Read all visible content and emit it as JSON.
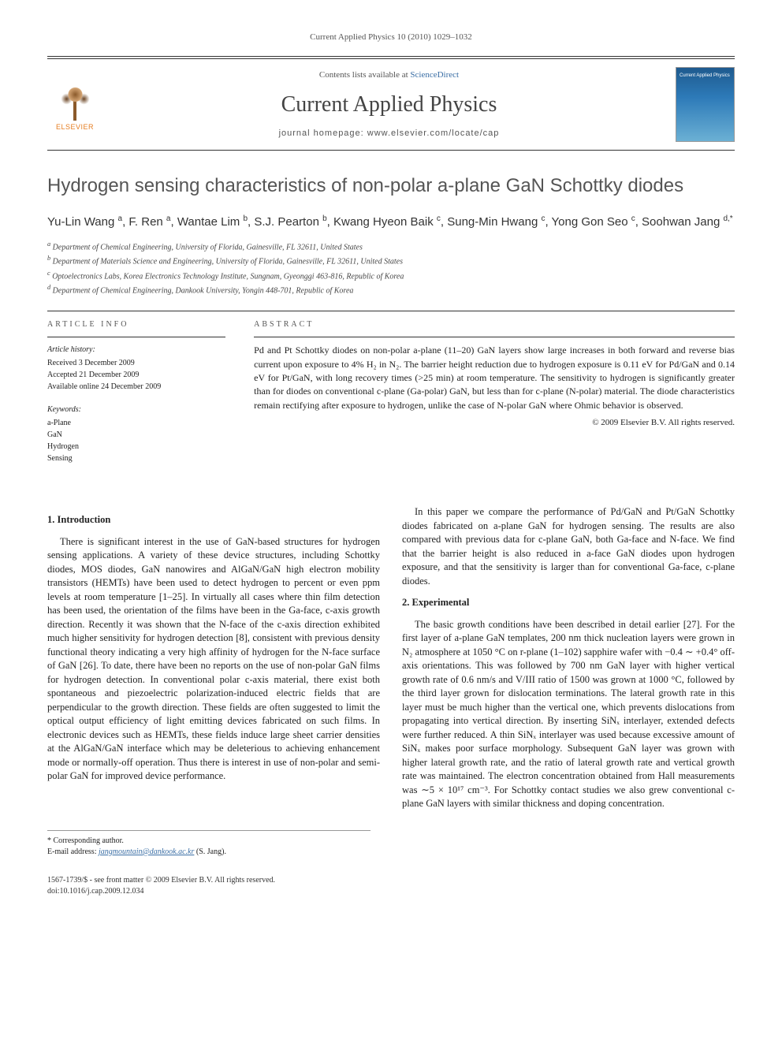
{
  "page_header": "Current Applied Physics 10 (2010) 1029–1032",
  "masthead": {
    "contents_prefix": "Contents lists available at ",
    "contents_link": "ScienceDirect",
    "journal_name": "Current Applied Physics",
    "homepage_prefix": "journal homepage: ",
    "homepage_url": "www.elsevier.com/locate/cap",
    "publisher_logo_text": "ELSEVIER",
    "cover_text_1": "Current Applied Physics"
  },
  "title": "Hydrogen sensing characteristics of non-polar a-plane GaN Schottky diodes",
  "authors_html": "Yu-Lin Wang <sup>a</sup>, F. Ren <sup>a</sup>, Wantae Lim <sup>b</sup>, S.J. Pearton <sup>b</sup>, Kwang Hyeon Baik <sup>c</sup>, Sung-Min Hwang <sup>c</sup>, Yong Gon Seo <sup>c</sup>, Soohwan Jang <sup>d,*</sup>",
  "affiliations": [
    "a Department of Chemical Engineering, University of Florida, Gainesville, FL 32611, United States",
    "b Department of Materials Science and Engineering, University of Florida, Gainesville, FL 32611, United States",
    "c Optoelectronics Labs, Korea Electronics Technology Institute, Sungnam, Gyeonggi 463-816, Republic of Korea",
    "d Department of Chemical Engineering, Dankook University, Yongin 448-701, Republic of Korea"
  ],
  "info": {
    "heading": "ARTICLE INFO",
    "history_label": "Article history:",
    "received": "Received 3 December 2009",
    "accepted": "Accepted 21 December 2009",
    "online": "Available online 24 December 2009",
    "keywords_label": "Keywords:",
    "keywords": [
      "a-Plane",
      "GaN",
      "Hydrogen",
      "Sensing"
    ]
  },
  "abstract": {
    "heading": "ABSTRACT",
    "text": "Pd and Pt Schottky diodes on non-polar a-plane (11–20) GaN layers show large increases in both forward and reverse bias current upon exposure to 4% H₂ in N₂. The barrier height reduction due to hydrogen exposure is 0.11 eV for Pd/GaN and 0.14 eV for Pt/GaN, with long recovery times (>25 min) at room temperature. The sensitivity to hydrogen is significantly greater than for diodes on conventional c-plane (Ga-polar) GaN, but less than for c-plane (N-polar) material. The diode characteristics remain rectifying after exposure to hydrogen, unlike the case of N-polar GaN where Ohmic behavior is observed.",
    "copyright": "© 2009 Elsevier B.V. All rights reserved."
  },
  "sections": {
    "intro_heading": "1. Introduction",
    "intro_p1": "There is significant interest in the use of GaN-based structures for hydrogen sensing applications. A variety of these device structures, including Schottky diodes, MOS diodes, GaN nanowires and AlGaN/GaN high electron mobility transistors (HEMTs) have been used to detect hydrogen to percent or even ppm levels at room temperature [1–25]. In virtually all cases where thin film detection has been used, the orientation of the films have been in the Ga-face, c-axis growth direction. Recently it was shown that the N-face of the c-axis direction exhibited much higher sensitivity for hydrogen detection [8], consistent with previous density functional theory indicating a very high affinity of hydrogen for the N-face surface of GaN [26]. To date, there have been no reports on the use of non-polar GaN films for hydrogen detection. In conventional polar c-axis material, there exist both spontaneous and piezoelectric polarization-induced electric fields that are perpendicular to the growth direction. These fields are often suggested to limit the optical output efficiency of light emitting devices fabricated on such films. In electronic devices such as HEMTs, these fields induce large sheet carrier densities at the AlGaN/GaN interface which may be deleterious to achieving enhancement mode or normally-off operation. Thus there is interest in use of non-polar and semi-polar GaN for improved device performance.",
    "intro_p2": "In this paper we compare the performance of Pd/GaN and Pt/GaN Schottky diodes fabricated on a-plane GaN for hydrogen sensing. The results are also compared with previous data for c-plane GaN, both Ga-face and N-face. We find that the barrier height is also reduced in a-face GaN diodes upon hydrogen exposure, and that the sensitivity is larger than for conventional Ga-face, c-plane diodes.",
    "exp_heading": "2. Experimental",
    "exp_p1": "The basic growth conditions have been described in detail earlier [27]. For the first layer of a-plane GaN templates, 200 nm thick nucleation layers were grown in N₂ atmosphere at 1050 °C on r-plane (1–102) sapphire wafer with −0.4 ∼ +0.4° off-axis orientations. This was followed by 700 nm GaN layer with higher vertical growth rate of 0.6 nm/s and V/III ratio of 1500 was grown at 1000 °C, followed by the third layer grown for dislocation terminations. The lateral growth rate in this layer must be much higher than the vertical one, which prevents dislocations from propagating into vertical direction. By inserting SiNₓ interlayer, extended defects were further reduced. A thin SiNₓ interlayer was used because excessive amount of SiNₓ makes poor surface morphology. Subsequent GaN layer was grown with higher lateral growth rate, and the ratio of lateral growth rate and vertical growth rate was maintained. The electron concentration obtained from Hall measurements was ∼5 × 10¹⁷ cm⁻³. For Schottky contact studies we also grew conventional c-plane GaN layers with similar thickness and doping concentration."
  },
  "footer": {
    "corresp_label": "* Corresponding author.",
    "email_label": "E-mail address: ",
    "email": "jangmountain@dankook.ac.kr",
    "email_name": " (S. Jang).",
    "issn_line": "1567-1739/$ - see front matter © 2009 Elsevier B.V. All rights reserved.",
    "doi_line": "doi:10.1016/j.cap.2009.12.034"
  },
  "colors": {
    "link": "#3a6ea5",
    "text": "#222222",
    "heading_gray": "#555555",
    "rule": "#333333",
    "elsevier_orange": "#e67e22",
    "cover_blue_top": "#1e5a8e",
    "cover_blue_bottom": "#6bb0d4"
  }
}
